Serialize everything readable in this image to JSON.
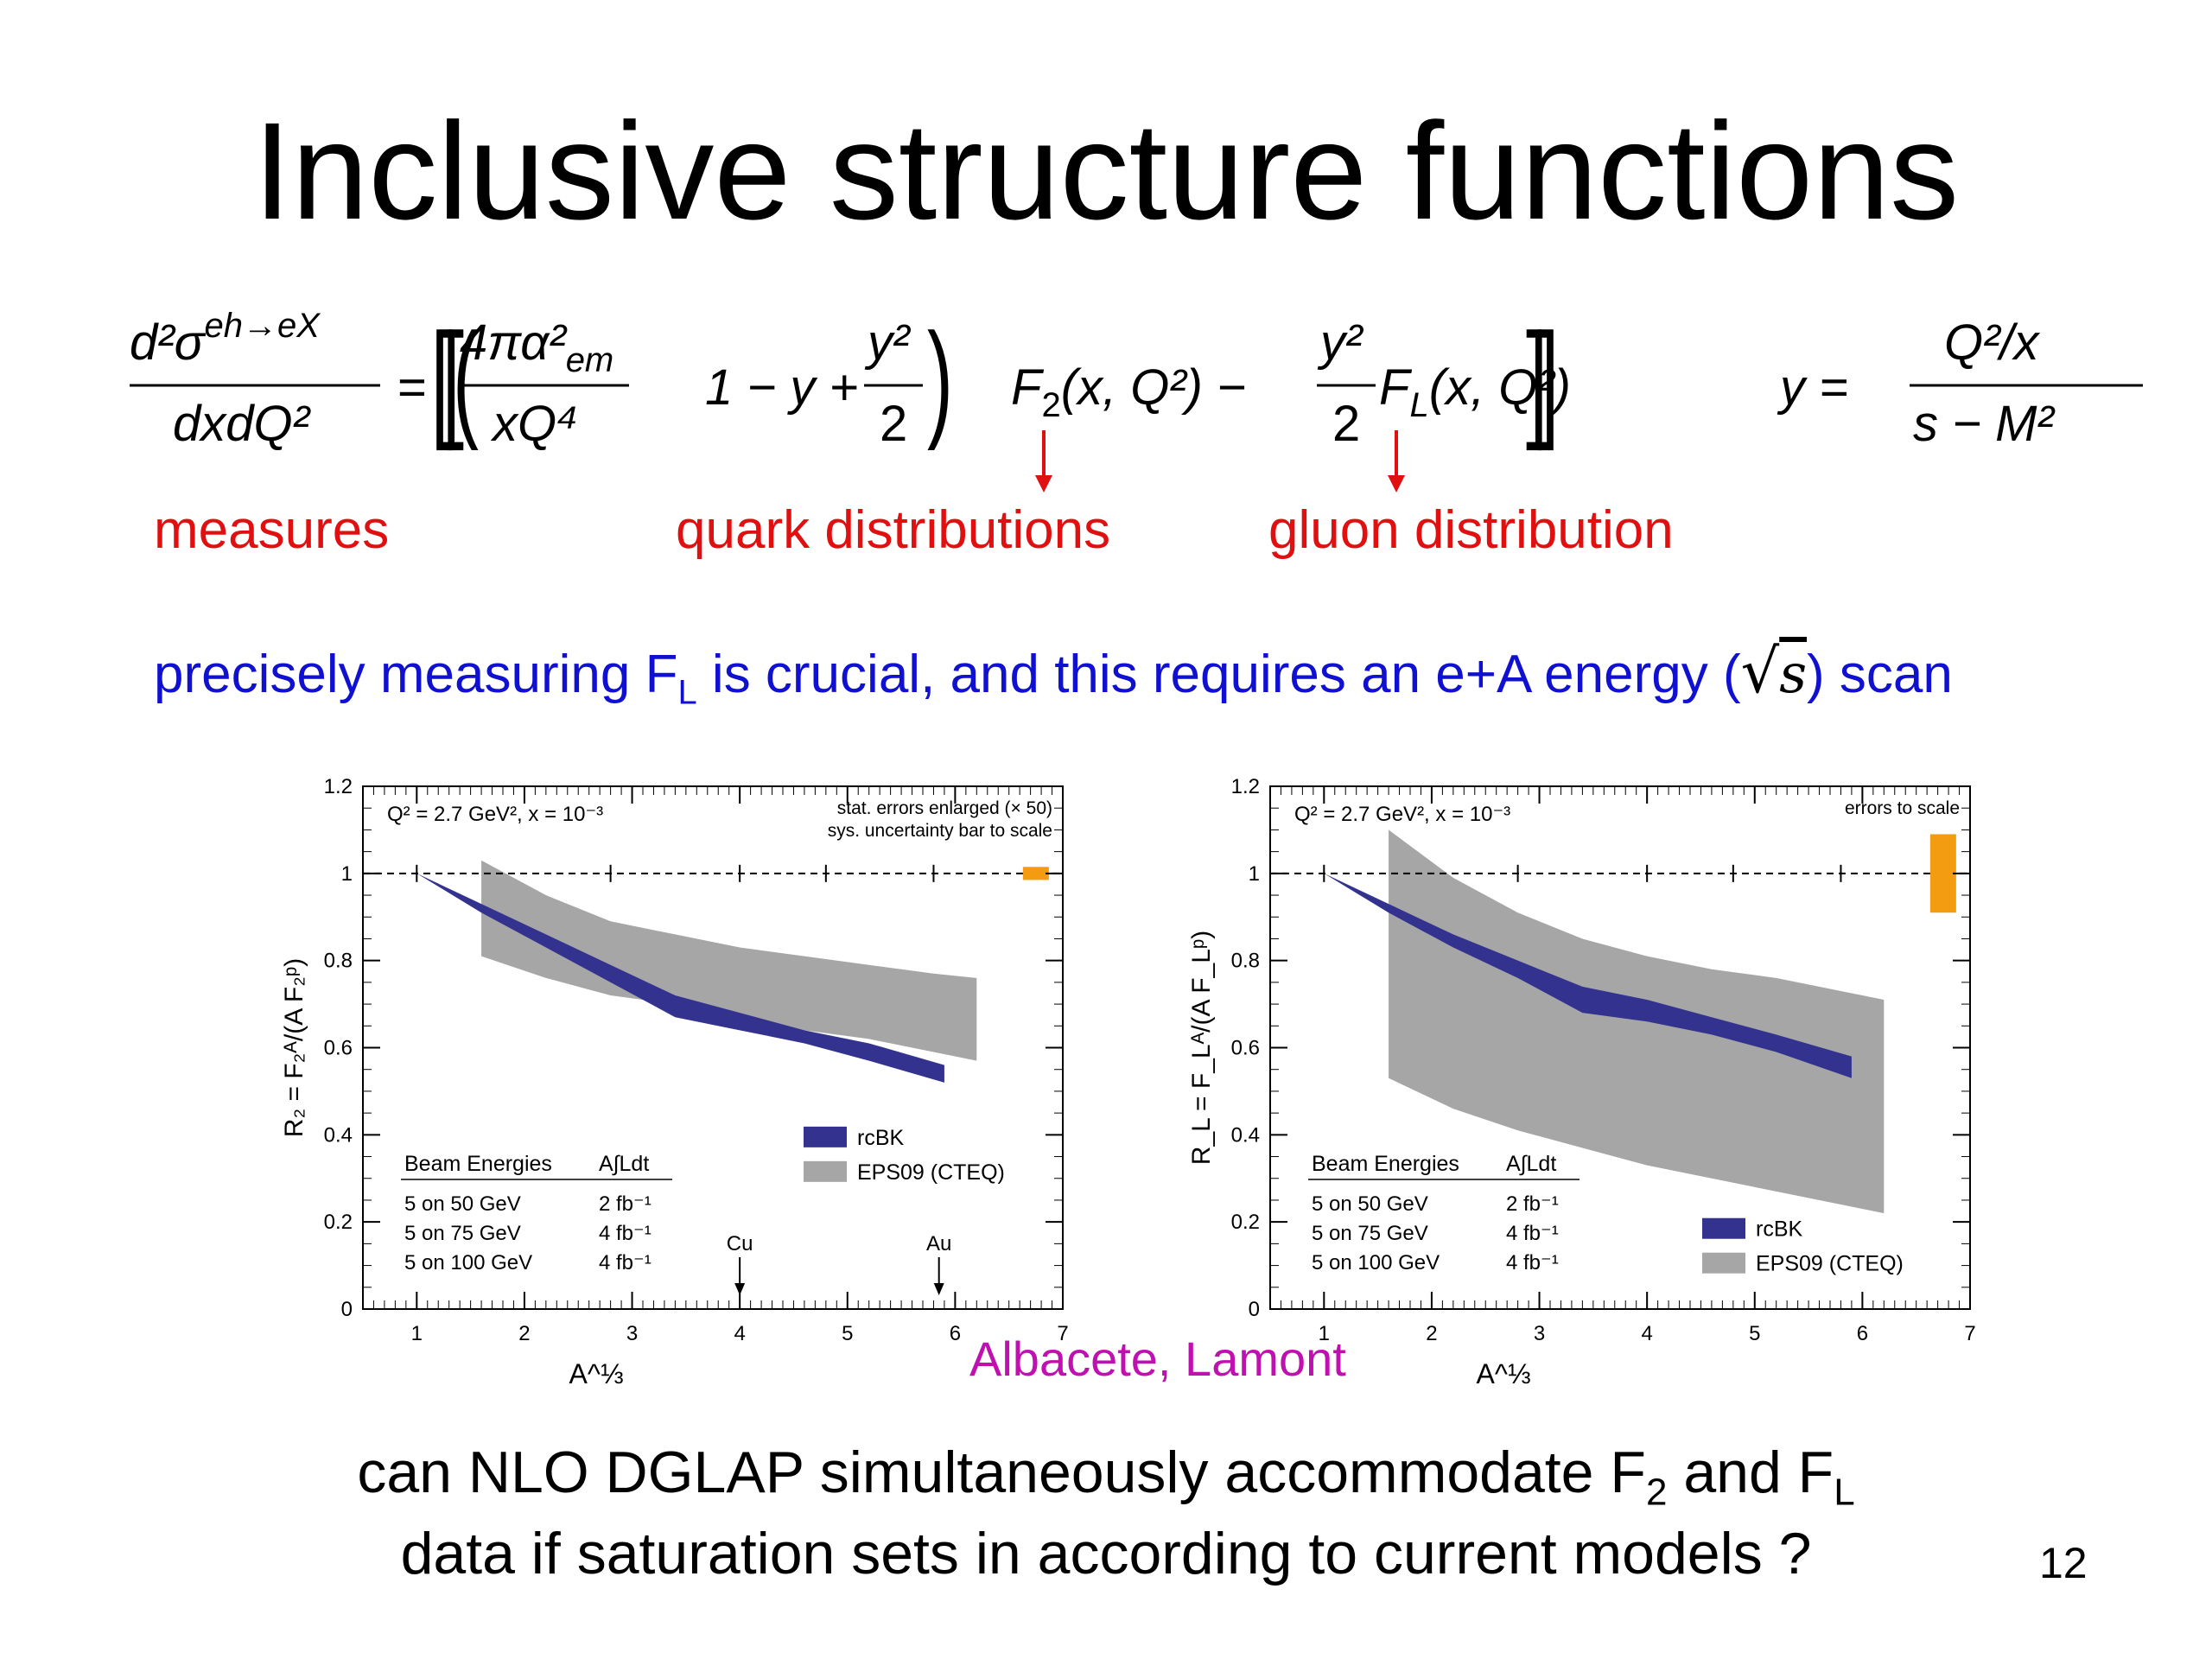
{
  "slide": {
    "title": "Inclusive structure functions",
    "page_number": "12",
    "credit": "Albacete, Lamont",
    "question_line1": "can NLO DGLAP simultaneously accommodate F",
    "question_line1_sub": "2",
    "question_line1_mid": " and F",
    "question_line1_sub2": "L",
    "question_line2": "data if saturation sets in according to current models ?"
  },
  "formula": {
    "lhs_num": "d²σ",
    "lhs_sup": "eh→eX",
    "lhs_den": "dxdQ²",
    "rhs_num": "4πα²",
    "rhs_num_sub": "em",
    "rhs_den": "xQ⁴",
    "y_frac_num": "y²",
    "y_frac_den": "2",
    "term1_pre": "1 − y +",
    "F2": "F",
    "F2_sub": "2",
    "F2_args": "(x, Q²) −",
    "FL": "F",
    "FL_sub": "L",
    "FL_args": "(x, Q²)",
    "y_def_lhs": "y =",
    "y_def_num": "Q²/x",
    "y_def_den": "s − M²"
  },
  "annotations": {
    "measures": "measures",
    "quark": "quark distributions",
    "gluon": "gluon distribution",
    "blue_pre": "precisely measuring F",
    "blue_sub": "L",
    "blue_mid": " is crucial, and this requires an e+A energy (",
    "blue_sqrt": "s",
    "blue_post": ") scan"
  },
  "colors": {
    "red": "#e01010",
    "blue_text": "#1010d0",
    "rcbk": "#33338f",
    "eps09": "#a6a6a6",
    "syst_bar": "#f39c12",
    "credit": "#c010b0"
  },
  "chart_data": [
    {
      "type": "area",
      "header": "Q² = 2.7 GeV², x = 10⁻³",
      "note_line1": "stat. errors enlarged (× 50)",
      "note_line2": "sys. uncertainty bar to scale",
      "xlabel": "A^⅓",
      "ylabel": "R₂ = F₂ᴬ/(A F₂ᵖ)",
      "xlim": [
        0.5,
        7
      ],
      "ylim": [
        0,
        1.2
      ],
      "x_ticks": [
        "1",
        "2",
        "3",
        "4",
        "5",
        "6",
        "7"
      ],
      "y_ticks": [
        "0",
        "0.2",
        "0.4",
        "0.6",
        "0.8",
        "1",
        "1.2"
      ],
      "reference_line": 1,
      "markers": [
        1,
        2.8,
        4,
        4.8,
        5.8
      ],
      "series": [
        {
          "name": "EPS09 (CTEQ)",
          "x": [
            1.6,
            2.2,
            2.8,
            3.4,
            4.0,
            4.6,
            5.2,
            5.8,
            6.2
          ],
          "low": [
            0.81,
            0.76,
            0.72,
            0.7,
            0.67,
            0.64,
            0.62,
            0.59,
            0.57
          ],
          "high": [
            1.03,
            0.95,
            0.89,
            0.86,
            0.83,
            0.81,
            0.79,
            0.77,
            0.76
          ]
        },
        {
          "name": "rcBK",
          "x": [
            1,
            1.6,
            2.2,
            2.8,
            3.4,
            4.0,
            4.6,
            5.2,
            5.9
          ],
          "low": [
            1.0,
            0.91,
            0.83,
            0.75,
            0.67,
            0.64,
            0.61,
            0.57,
            0.52
          ],
          "high": [
            1.0,
            0.93,
            0.86,
            0.79,
            0.72,
            0.68,
            0.64,
            0.61,
            0.56
          ]
        }
      ],
      "syst_bar": {
        "x": 6.75,
        "low": 0.985,
        "high": 1.015
      },
      "nuclei": [
        {
          "label": "Cu",
          "x": 4.0
        },
        {
          "label": "Au",
          "x": 5.85
        }
      ],
      "legend": [
        "rcBK",
        "EPS09 (CTEQ)"
      ],
      "legend_position": "middle-right",
      "table": {
        "headers": [
          "Beam Energies",
          "A∫Ldt"
        ],
        "rows": [
          [
            "5 on 50 GeV",
            "2 fb⁻¹"
          ],
          [
            "5 on 75 GeV",
            "4 fb⁻¹"
          ],
          [
            "5 on 100 GeV",
            "4 fb⁻¹"
          ]
        ]
      }
    },
    {
      "type": "area",
      "header": "Q² = 2.7 GeV², x = 10⁻³",
      "note_line1": "errors to scale",
      "xlabel": "A^⅓",
      "ylabel": "R_L = F_Lᴬ/(A F_Lᵖ)",
      "xlim": [
        0.5,
        7
      ],
      "ylim": [
        0,
        1.2
      ],
      "x_ticks": [
        "1",
        "2",
        "3",
        "4",
        "5",
        "6",
        "7"
      ],
      "y_ticks": [
        "0",
        "0.2",
        "0.4",
        "0.6",
        "0.8",
        "1",
        "1.2"
      ],
      "reference_line": 1,
      "markers": [
        1,
        2.8,
        4,
        4.8,
        5.8
      ],
      "series": [
        {
          "name": "EPS09 (CTEQ)",
          "x": [
            1.6,
            2.2,
            2.8,
            3.4,
            4.0,
            4.6,
            5.2,
            5.8,
            6.2
          ],
          "low": [
            0.53,
            0.46,
            0.41,
            0.37,
            0.33,
            0.3,
            0.27,
            0.24,
            0.22
          ],
          "high": [
            1.1,
            0.99,
            0.91,
            0.85,
            0.81,
            0.78,
            0.76,
            0.73,
            0.71
          ]
        },
        {
          "name": "rcBK",
          "x": [
            1,
            1.6,
            2.2,
            2.8,
            3.4,
            4.0,
            4.6,
            5.2,
            5.9
          ],
          "low": [
            1.0,
            0.91,
            0.83,
            0.76,
            0.68,
            0.66,
            0.63,
            0.59,
            0.53
          ],
          "high": [
            1.0,
            0.93,
            0.86,
            0.8,
            0.74,
            0.71,
            0.67,
            0.63,
            0.58
          ]
        }
      ],
      "syst_bar": {
        "x": 6.75,
        "low": 0.91,
        "high": 1.09
      },
      "nuclei": [],
      "legend": [
        "rcBK",
        "EPS09 (CTEQ)"
      ],
      "legend_position": "bottom-right",
      "table": {
        "headers": [
          "Beam Energies",
          "A∫Ldt"
        ],
        "rows": [
          [
            "5 on 50 GeV",
            "2 fb⁻¹"
          ],
          [
            "5 on 75 GeV",
            "4 fb⁻¹"
          ],
          [
            "5 on 100 GeV",
            "4 fb⁻¹"
          ]
        ]
      }
    }
  ]
}
